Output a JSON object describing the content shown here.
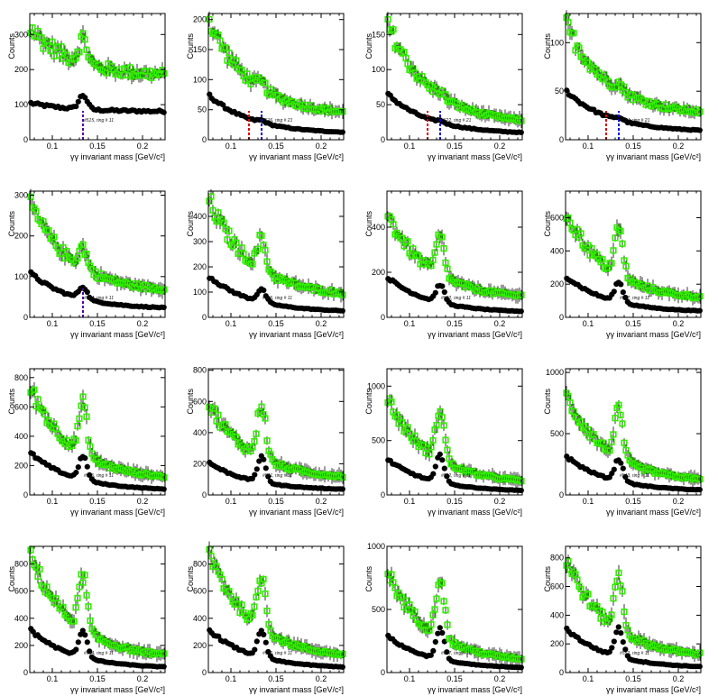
{
  "chart_data": {
    "type": "scatter",
    "grid": false,
    "legend": "none",
    "x_axis": {
      "label": "γγ invariant mass [GeV/c²]",
      "range": [
        0.075,
        0.225
      ],
      "ticks": [
        0.1,
        0.15,
        0.2
      ],
      "tick_labels": [
        "0.1",
        "0.15",
        "0.2"
      ]
    },
    "y_label": "Counts",
    "marker_colors": {
      "signal": "#33ee00",
      "background": "#000000",
      "marker_red": "#dd0000",
      "marker_blue": "#0000dd",
      "marker_purple": "#5500aa"
    },
    "panels": [
      {
        "id": 0,
        "annotation": "#515, ring # 11",
        "ylim": [
          0,
          360
        ],
        "yticks": [
          100,
          200,
          300
        ],
        "peak": 0.134,
        "sig": {
          "base": 180,
          "amp": 140,
          "bump": 70,
          "tail": 70
        },
        "bkg": {
          "base": 80,
          "amp": 25,
          "bump": 40,
          "tail": 25
        },
        "markers": [
          {
            "x": 0.134,
            "color": "purple"
          }
        ]
      },
      {
        "id": 1,
        "annotation": "#516, ring # 21",
        "ylim": [
          0,
          210
        ],
        "yticks": [
          50,
          100,
          150,
          200
        ],
        "peak": 0.134,
        "sig": {
          "base": 40,
          "amp": 160,
          "bump": 10,
          "tail": 22
        },
        "bkg": {
          "base": 10,
          "amp": 65,
          "bump": 4,
          "tail": 10
        },
        "markers": [
          {
            "x": 0.12,
            "color": "red"
          },
          {
            "x": 0.134,
            "color": "blue"
          }
        ]
      },
      {
        "id": 2,
        "annotation": "#522, ring # 21",
        "ylim": [
          0,
          180
        ],
        "yticks": [
          50,
          100,
          150
        ],
        "peak": 0.134,
        "sig": {
          "base": 22,
          "amp": 145,
          "bump": 6,
          "tail": 20
        },
        "bkg": {
          "base": 8,
          "amp": 58,
          "bump": 3,
          "tail": 6
        },
        "markers": [
          {
            "x": 0.12,
            "color": "red"
          },
          {
            "x": 0.134,
            "color": "blue"
          }
        ]
      },
      {
        "id": 3,
        "annotation": "#524, ring # 21",
        "ylim": [
          0,
          130
        ],
        "yticks": [
          50,
          100
        ],
        "peak": 0.134,
        "sig": {
          "base": 25,
          "amp": 95,
          "bump": 6,
          "tail": 20
        },
        "bkg": {
          "base": 8,
          "amp": 43,
          "bump": 3,
          "tail": 6
        },
        "markers": [
          {
            "x": 0.12,
            "color": "red"
          },
          {
            "x": 0.134,
            "color": "blue"
          }
        ]
      },
      {
        "id": 4,
        "annotation": "#524, ring # 11",
        "ylim": [
          0,
          310
        ],
        "yticks": [
          100,
          200,
          300
        ],
        "peak": 0.134,
        "sig": {
          "base": 60,
          "amp": 220,
          "bump": 50,
          "tail": 30
        },
        "bkg": {
          "base": 20,
          "amp": 90,
          "bump": 30,
          "tail": 15
        },
        "markers": [
          {
            "x": 0.134,
            "color": "purple"
          }
        ]
      },
      {
        "id": 5,
        "annotation": "#526, ring # 11",
        "ylim": [
          0,
          500
        ],
        "yticks": [
          100,
          200,
          300,
          400
        ],
        "peak": 0.134,
        "sig": {
          "base": 80,
          "amp": 390,
          "bump": 120,
          "tail": 40
        },
        "bkg": {
          "base": 20,
          "amp": 145,
          "bump": 50,
          "tail": 20
        },
        "markers": []
      },
      {
        "id": 6,
        "annotation": "#532, ring # 11",
        "ylim": [
          0,
          560
        ],
        "yticks": [
          200,
          400
        ],
        "peak": 0.134,
        "sig": {
          "base": 80,
          "amp": 380,
          "bump": 170,
          "tail": 50
        },
        "bkg": {
          "base": 20,
          "amp": 160,
          "bump": 80,
          "tail": 20
        },
        "markers": []
      },
      {
        "id": 7,
        "annotation": "#537, ring # 11",
        "ylim": [
          0,
          760
        ],
        "yticks": [
          200,
          400,
          600
        ],
        "peak": 0.134,
        "sig": {
          "base": 100,
          "amp": 540,
          "bump": 280,
          "tail": 60
        },
        "bkg": {
          "base": 30,
          "amp": 220,
          "bump": 120,
          "tail": 30
        },
        "markers": []
      },
      {
        "id": 8,
        "annotation": "#536, ring # 11",
        "ylim": [
          0,
          860
        ],
        "yticks": [
          200,
          400,
          600,
          800
        ],
        "peak": 0.134,
        "sig": {
          "base": 100,
          "amp": 640,
          "bump": 340,
          "tail": 80
        },
        "bkg": {
          "base": 30,
          "amp": 260,
          "bump": 160,
          "tail": 30
        },
        "markers": []
      },
      {
        "id": 9,
        "annotation": "#541, ring # 11",
        "ylim": [
          0,
          810
        ],
        "yticks": [
          200,
          400,
          600,
          800
        ],
        "peak": 0.134,
        "sig": {
          "base": 100,
          "amp": 490,
          "bump": 350,
          "tail": 80
        },
        "bkg": {
          "base": 30,
          "amp": 180,
          "bump": 160,
          "tail": 30
        },
        "markers": []
      },
      {
        "id": 10,
        "annotation": "#542, ring # 11",
        "ylim": [
          0,
          1160
        ],
        "yticks": [
          500,
          1000
        ],
        "peak": 0.134,
        "sig": {
          "base": 100,
          "amp": 790,
          "bump": 480,
          "tail": 80
        },
        "bkg": {
          "base": 30,
          "amp": 300,
          "bump": 250,
          "tail": 30
        },
        "markers": []
      },
      {
        "id": 11,
        "annotation": "#543, ring # 11",
        "ylim": [
          0,
          1030
        ],
        "yticks": [
          500,
          1000
        ],
        "peak": 0.134,
        "sig": {
          "base": 100,
          "amp": 720,
          "bump": 380,
          "tail": 80
        },
        "bkg": {
          "base": 30,
          "amp": 290,
          "bump": 180,
          "tail": 30
        },
        "markers": []
      },
      {
        "id": 12,
        "annotation": "#544, ring # 11",
        "ylim": [
          0,
          930
        ],
        "yticks": [
          200,
          400,
          600,
          800
        ],
        "peak": 0.134,
        "sig": {
          "base": 100,
          "amp": 770,
          "bump": 400,
          "tail": 80
        },
        "bkg": {
          "base": 30,
          "amp": 290,
          "bump": 200,
          "tail": 30
        },
        "markers": []
      },
      {
        "id": 13,
        "annotation": "#546, ring # 11",
        "ylim": [
          0,
          930
        ],
        "yticks": [
          200,
          400,
          600,
          800
        ],
        "peak": 0.134,
        "sig": {
          "base": 100,
          "amp": 800,
          "bump": 380,
          "tail": 80
        },
        "bkg": {
          "base": 30,
          "amp": 290,
          "bump": 190,
          "tail": 30
        },
        "markers": []
      },
      {
        "id": 14,
        "annotation": "#547, ring # 11",
        "ylim": [
          0,
          1000
        ],
        "yticks": [
          500,
          1000
        ],
        "peak": 0.134,
        "sig": {
          "base": 80,
          "amp": 720,
          "bump": 480,
          "tail": 70
        },
        "bkg": {
          "base": 30,
          "amp": 260,
          "bump": 240,
          "tail": 30
        },
        "markers": []
      },
      {
        "id": 15,
        "annotation": "#552, ring # 11",
        "ylim": [
          0,
          880
        ],
        "yticks": [
          200,
          400,
          600,
          800
        ],
        "peak": 0.134,
        "sig": {
          "base": 100,
          "amp": 700,
          "bump": 380,
          "tail": 80
        },
        "bkg": {
          "base": 30,
          "amp": 280,
          "bump": 200,
          "tail": 30
        },
        "markers": []
      }
    ]
  }
}
